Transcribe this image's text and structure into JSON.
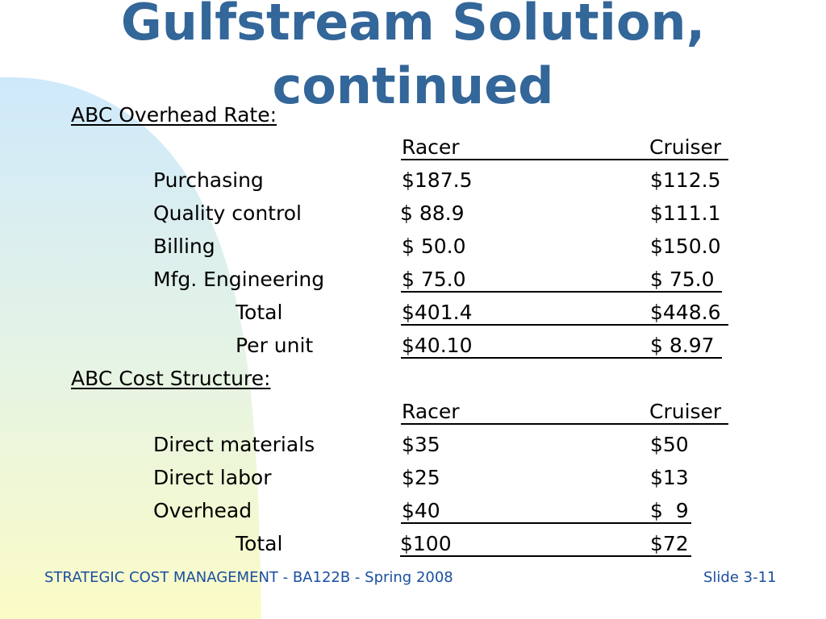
{
  "slide": {
    "title_line1": "Gulfstream Solution,",
    "title_line2": "continued",
    "accent_color": "#336699",
    "background_gradient": [
      "#cfe9fb",
      "#fbfbc6"
    ]
  },
  "overhead": {
    "heading": "ABC Overhead Rate:",
    "col_racer": "Racer",
    "col_cruiser": "Cruiser",
    "rows": [
      {
        "label": "Purchasing",
        "racer": "$187.5",
        "cruiser": "$112.5"
      },
      {
        "label": "Quality control",
        "racer": "$ 88.9",
        "cruiser": "$111.1"
      },
      {
        "label": "Billing",
        "racer": "$ 50.0",
        "cruiser": "$150.0"
      },
      {
        "label": "Mfg. Engineering",
        "racer": "$ 75.0",
        "cruiser": "$ 75.0"
      },
      {
        "label": "Total",
        "racer": "$401.4",
        "cruiser": "$448.6"
      },
      {
        "label": "Per unit",
        "racer": "$40.10",
        "cruiser": "$ 8.97"
      }
    ]
  },
  "cost": {
    "heading": "ABC Cost Structure:",
    "col_racer": "Racer",
    "col_cruiser": "Cruiser",
    "rows": [
      {
        "label": "Direct materials",
        "racer": "$35",
        "cruiser": "$50"
      },
      {
        "label": "Direct labor",
        "racer": "$25",
        "cruiser": "$13"
      },
      {
        "label": "Overhead",
        "racer": "$40",
        "cruiser": "$  9"
      },
      {
        "label": "Total",
        "racer": "$100",
        "cruiser": "$72"
      }
    ]
  },
  "footer": {
    "left": "STRATEGIC COST MANAGEMENT - BA122B - Spring 2008",
    "right": "Slide 3-11",
    "color": "#1a4fa0"
  }
}
